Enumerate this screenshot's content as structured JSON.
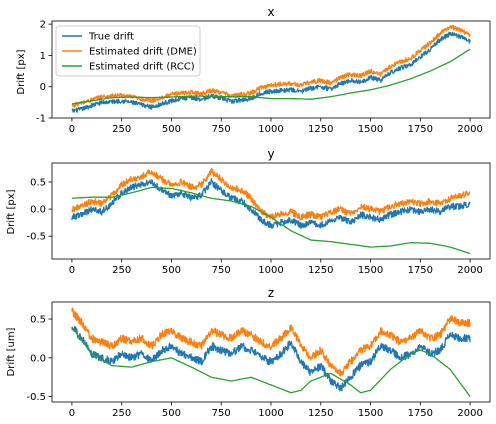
{
  "figure": {
    "colors": {
      "true_drift": "#1f77b4",
      "dme": "#ff7f0e",
      "rcc": "#2ca02c",
      "axes": "#000000",
      "background": "#ffffff"
    }
  },
  "chart_data": [
    {
      "type": "line",
      "title": "x",
      "xlabel": "",
      "ylabel": "Drift [px]",
      "xlim": [
        -100,
        2100
      ],
      "ylim": [
        -1.0,
        2.1
      ],
      "xticks": [
        0,
        250,
        500,
        750,
        1000,
        1250,
        1500,
        1750,
        2000
      ],
      "yticks": [
        -1,
        0,
        1,
        2
      ],
      "grid": false,
      "legend": {
        "placement": "upper-left",
        "entries": [
          "True drift",
          "Estimated drift (DME)",
          "Estimated drift (RCC)"
        ]
      },
      "series": [
        {
          "name": "True drift",
          "color": "#1f77b4",
          "noise": 0.07,
          "x": [
            0,
            50,
            100,
            150,
            200,
            250,
            300,
            350,
            400,
            450,
            500,
            550,
            600,
            650,
            700,
            750,
            800,
            850,
            900,
            950,
            1000,
            1050,
            1100,
            1150,
            1200,
            1250,
            1300,
            1350,
            1400,
            1450,
            1500,
            1550,
            1600,
            1650,
            1700,
            1750,
            1800,
            1850,
            1900,
            1950,
            2000
          ],
          "y": [
            -0.78,
            -0.72,
            -0.6,
            -0.5,
            -0.48,
            -0.45,
            -0.5,
            -0.58,
            -0.65,
            -0.55,
            -0.45,
            -0.38,
            -0.35,
            -0.4,
            -0.3,
            -0.35,
            -0.48,
            -0.42,
            -0.38,
            -0.2,
            -0.15,
            -0.12,
            -0.1,
            -0.15,
            -0.05,
            0.0,
            -0.08,
            0.1,
            0.2,
            0.15,
            0.3,
            0.2,
            0.45,
            0.6,
            0.7,
            0.95,
            1.2,
            1.5,
            1.7,
            1.6,
            1.45
          ]
        },
        {
          "name": "Estimated drift (DME)",
          "color": "#ff7f0e",
          "noise": 0.07,
          "x": [
            0,
            50,
            100,
            150,
            200,
            250,
            300,
            350,
            400,
            450,
            500,
            550,
            600,
            650,
            700,
            750,
            800,
            850,
            900,
            950,
            1000,
            1050,
            1100,
            1150,
            1200,
            1250,
            1300,
            1350,
            1400,
            1450,
            1500,
            1550,
            1600,
            1650,
            1700,
            1750,
            1800,
            1850,
            1900,
            1950,
            2000
          ],
          "y": [
            -0.6,
            -0.52,
            -0.42,
            -0.32,
            -0.3,
            -0.28,
            -0.33,
            -0.4,
            -0.45,
            -0.35,
            -0.25,
            -0.2,
            -0.18,
            -0.22,
            -0.12,
            -0.18,
            -0.3,
            -0.25,
            -0.2,
            -0.02,
            0.05,
            0.08,
            0.1,
            0.05,
            0.15,
            0.2,
            0.12,
            0.3,
            0.4,
            0.35,
            0.5,
            0.4,
            0.65,
            0.8,
            0.9,
            1.15,
            1.4,
            1.7,
            1.92,
            1.82,
            1.65
          ]
        },
        {
          "name": "Estimated drift (RCC)",
          "color": "#2ca02c",
          "noise": 0,
          "x": [
            0,
            100,
            200,
            300,
            400,
            500,
            600,
            700,
            800,
            900,
            1000,
            1100,
            1200,
            1300,
            1400,
            1500,
            1600,
            1700,
            1800,
            1900,
            2000
          ],
          "y": [
            -0.55,
            -0.45,
            -0.35,
            -0.33,
            -0.35,
            -0.33,
            -0.3,
            -0.3,
            -0.32,
            -0.32,
            -0.38,
            -0.38,
            -0.4,
            -0.32,
            -0.2,
            -0.1,
            0.05,
            0.25,
            0.5,
            0.8,
            1.2
          ]
        }
      ]
    },
    {
      "type": "line",
      "title": "y",
      "xlabel": "",
      "ylabel": "Drift [px]",
      "xlim": [
        -100,
        2100
      ],
      "ylim": [
        -0.92,
        0.85
      ],
      "xticks": [
        0,
        250,
        500,
        750,
        1000,
        1250,
        1500,
        1750,
        2000
      ],
      "yticks": [
        -0.5,
        0.0,
        0.5
      ],
      "grid": false,
      "series": [
        {
          "name": "True drift",
          "color": "#1f77b4",
          "noise": 0.06,
          "x": [
            0,
            50,
            100,
            150,
            200,
            250,
            300,
            350,
            400,
            450,
            500,
            550,
            600,
            650,
            700,
            750,
            800,
            850,
            900,
            950,
            1000,
            1050,
            1100,
            1150,
            1200,
            1250,
            1300,
            1350,
            1400,
            1450,
            1500,
            1550,
            1600,
            1650,
            1700,
            1750,
            1800,
            1850,
            1900,
            1950,
            2000
          ],
          "y": [
            -0.15,
            -0.1,
            0.0,
            -0.05,
            0.1,
            0.3,
            0.4,
            0.45,
            0.5,
            0.35,
            0.25,
            0.3,
            0.2,
            0.25,
            0.5,
            0.35,
            0.2,
            0.15,
            0.0,
            -0.2,
            -0.3,
            -0.25,
            -0.2,
            -0.3,
            -0.25,
            -0.3,
            -0.2,
            -0.15,
            -0.25,
            -0.1,
            -0.15,
            -0.2,
            -0.1,
            -0.05,
            0.0,
            -0.05,
            0.0,
            -0.05,
            0.05,
            0.05,
            0.1
          ]
        },
        {
          "name": "Estimated drift (DME)",
          "color": "#ff7f0e",
          "noise": 0.06,
          "x": [
            0,
            50,
            100,
            150,
            200,
            250,
            300,
            350,
            400,
            450,
            500,
            550,
            600,
            650,
            700,
            750,
            800,
            850,
            900,
            950,
            1000,
            1050,
            1100,
            1150,
            1200,
            1250,
            1300,
            1350,
            1400,
            1450,
            1500,
            1550,
            1600,
            1650,
            1700,
            1750,
            1800,
            1850,
            1900,
            1950,
            2000
          ],
          "y": [
            0.0,
            0.05,
            0.15,
            0.1,
            0.25,
            0.45,
            0.55,
            0.6,
            0.7,
            0.55,
            0.45,
            0.5,
            0.4,
            0.45,
            0.7,
            0.55,
            0.4,
            0.35,
            0.2,
            -0.05,
            -0.15,
            -0.1,
            -0.05,
            -0.15,
            -0.1,
            -0.15,
            -0.05,
            0.0,
            -0.1,
            0.05,
            0.0,
            -0.05,
            0.05,
            0.1,
            0.15,
            0.1,
            0.15,
            0.1,
            0.2,
            0.25,
            0.3
          ]
        },
        {
          "name": "Estimated drift (RCC)",
          "color": "#2ca02c",
          "noise": 0,
          "x": [
            0,
            100,
            200,
            300,
            400,
            500,
            600,
            700,
            800,
            900,
            1000,
            1100,
            1200,
            1300,
            1400,
            1500,
            1600,
            1700,
            1800,
            1900,
            2000
          ],
          "y": [
            0.2,
            0.22,
            0.22,
            0.3,
            0.4,
            0.38,
            0.3,
            0.2,
            0.15,
            0.05,
            -0.15,
            -0.4,
            -0.57,
            -0.6,
            -0.65,
            -0.7,
            -0.68,
            -0.62,
            -0.63,
            -0.7,
            -0.82
          ]
        }
      ]
    },
    {
      "type": "line",
      "title": "z",
      "xlabel": "",
      "ylabel": "Drift [um]",
      "xlim": [
        -100,
        2100
      ],
      "ylim": [
        -0.57,
        0.72
      ],
      "xticks": [
        0,
        250,
        500,
        750,
        1000,
        1250,
        1500,
        1750,
        2000
      ],
      "yticks": [
        -0.5,
        0.0,
        0.5
      ],
      "grid": false,
      "series": [
        {
          "name": "True drift",
          "color": "#1f77b4",
          "noise": 0.05,
          "x": [
            0,
            50,
            100,
            150,
            200,
            250,
            300,
            350,
            400,
            450,
            500,
            550,
            600,
            650,
            700,
            750,
            800,
            850,
            900,
            950,
            1000,
            1050,
            1100,
            1150,
            1200,
            1250,
            1300,
            1350,
            1400,
            1450,
            1500,
            1550,
            1600,
            1650,
            1700,
            1750,
            1800,
            1850,
            1900,
            1950,
            2000
          ],
          "y": [
            0.4,
            0.25,
            0.05,
            0.0,
            -0.05,
            0.05,
            0.0,
            0.05,
            -0.05,
            0.1,
            0.15,
            0.05,
            0.0,
            -0.05,
            0.15,
            0.1,
            0.05,
            0.15,
            0.1,
            0.0,
            -0.05,
            0.05,
            0.2,
            -0.05,
            -0.2,
            -0.1,
            -0.3,
            -0.4,
            -0.25,
            -0.1,
            -0.05,
            0.15,
            0.1,
            0.0,
            0.05,
            0.15,
            0.05,
            0.1,
            0.3,
            0.25,
            0.25
          ]
        },
        {
          "name": "Estimated drift (DME)",
          "color": "#ff7f0e",
          "noise": 0.05,
          "x": [
            0,
            50,
            100,
            150,
            200,
            250,
            300,
            350,
            400,
            450,
            500,
            550,
            600,
            650,
            700,
            750,
            800,
            850,
            900,
            950,
            1000,
            1050,
            1100,
            1150,
            1200,
            1250,
            1300,
            1350,
            1400,
            1450,
            1500,
            1550,
            1600,
            1650,
            1700,
            1750,
            1800,
            1850,
            1900,
            1950,
            2000
          ],
          "y": [
            0.6,
            0.45,
            0.25,
            0.2,
            0.15,
            0.25,
            0.2,
            0.25,
            0.15,
            0.3,
            0.35,
            0.25,
            0.2,
            0.15,
            0.35,
            0.3,
            0.25,
            0.35,
            0.3,
            0.2,
            0.15,
            0.25,
            0.4,
            0.15,
            0.0,
            0.1,
            -0.1,
            -0.2,
            -0.05,
            0.1,
            0.15,
            0.35,
            0.3,
            0.2,
            0.25,
            0.35,
            0.25,
            0.3,
            0.5,
            0.45,
            0.45
          ]
        },
        {
          "name": "Estimated drift (RCC)",
          "color": "#2ca02c",
          "noise": 0,
          "x": [
            0,
            100,
            200,
            300,
            400,
            500,
            600,
            700,
            800,
            900,
            1000,
            1050,
            1100,
            1150,
            1200,
            1300,
            1400,
            1450,
            1500,
            1600,
            1700,
            1750,
            1800,
            1900,
            2000
          ],
          "y": [
            0.4,
            0.05,
            -0.1,
            -0.12,
            -0.05,
            0.0,
            -0.12,
            -0.25,
            -0.3,
            -0.25,
            -0.35,
            -0.4,
            -0.45,
            -0.42,
            -0.3,
            -0.2,
            -0.35,
            -0.45,
            -0.42,
            -0.15,
            0.05,
            0.1,
            0.05,
            -0.15,
            -0.5
          ]
        }
      ]
    }
  ]
}
